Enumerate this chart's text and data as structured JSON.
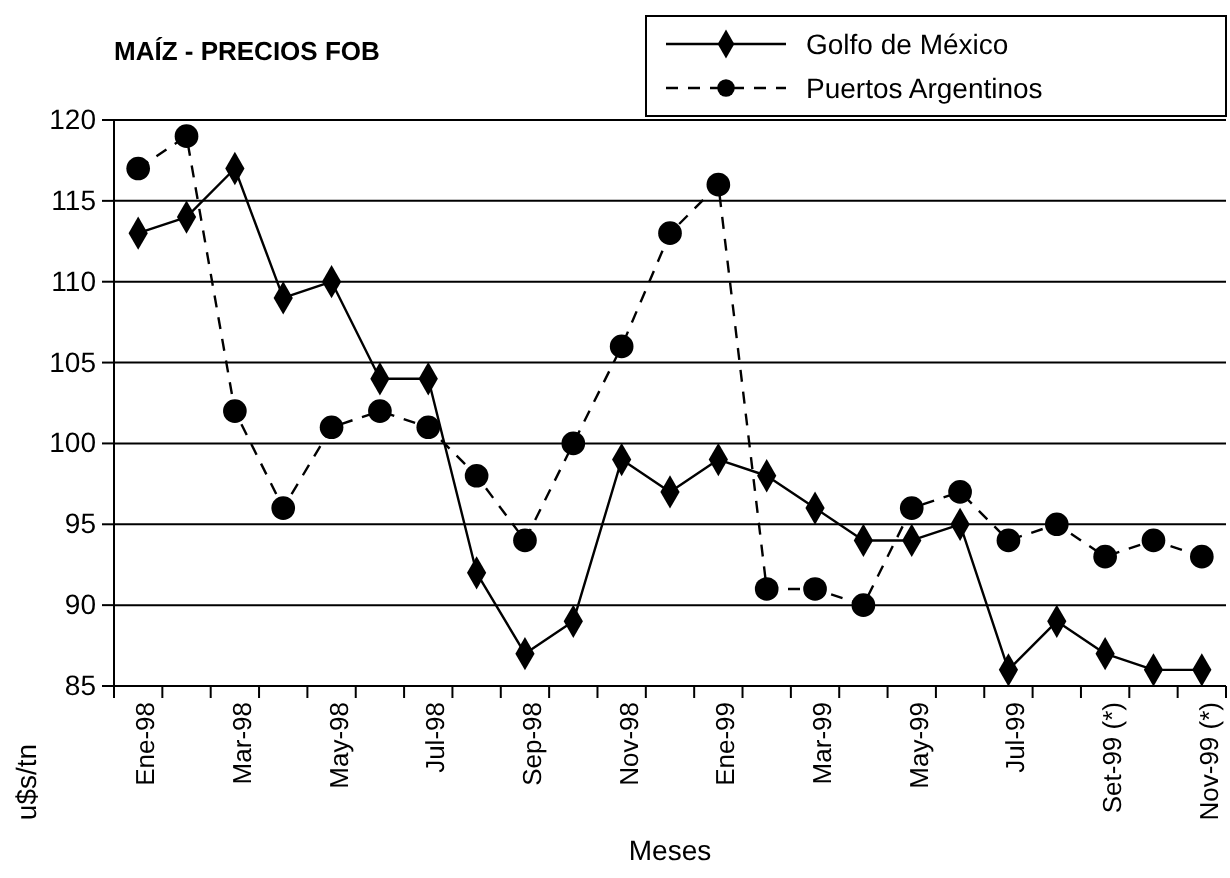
{
  "chart_data": {
    "type": "line",
    "title": "MAÍZ - PRECIOS FOB",
    "xlabel": "Meses",
    "ylabel": "u$s/tn",
    "categories": [
      "Ene-98",
      null,
      "Mar-98",
      null,
      "May-98",
      null,
      "Jul-98",
      null,
      "Sep-98",
      null,
      "Nov-98",
      null,
      "Ene-99",
      null,
      "Mar-99",
      null,
      "May-99",
      null,
      "Jul-99",
      null,
      "Set-99 (*)",
      null,
      "Nov-99 (*)"
    ],
    "series": [
      {
        "name": "Golfo de México",
        "color": "#000000",
        "marker": "diamond",
        "line_style": "solid",
        "values": [
          113,
          114,
          117,
          109,
          110,
          104,
          104,
          92,
          87,
          89,
          99,
          97,
          99,
          98,
          96,
          94,
          94,
          95,
          86,
          89,
          87,
          86,
          86
        ]
      },
      {
        "name": "Puertos Argentinos",
        "color": "#000000",
        "marker": "circle",
        "line_style": "dashed",
        "values": [
          117,
          119,
          102,
          96,
          101,
          102,
          101,
          98,
          94,
          100,
          106,
          113,
          116,
          91,
          91,
          90,
          96,
          97,
          94,
          95,
          93,
          94,
          93
        ]
      }
    ],
    "ylim": [
      85,
      120
    ],
    "yticks": [
      85,
      90,
      95,
      100,
      105,
      110,
      115,
      120
    ],
    "grid": "y",
    "legend": "top right"
  }
}
